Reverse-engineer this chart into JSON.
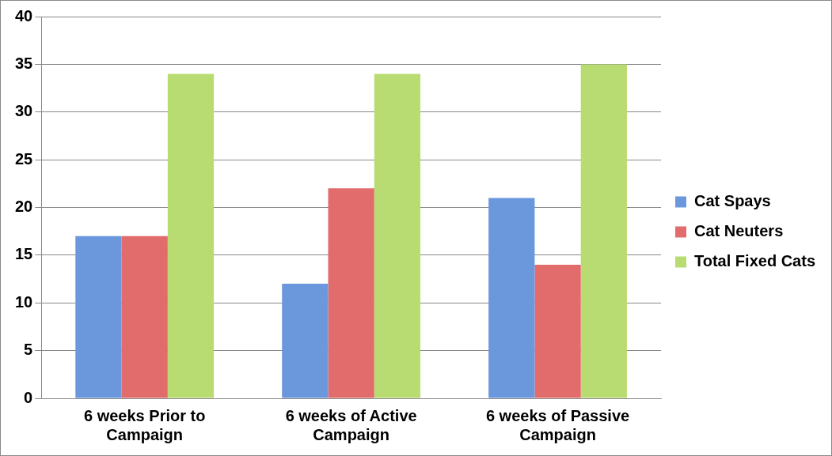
{
  "chart_data": {
    "type": "bar",
    "categories": [
      "6 weeks Prior to Campaign",
      "6 weeks of Active Campaign",
      "6 weeks of Passive Campaign"
    ],
    "series": [
      {
        "name": "Cat Spays",
        "color": "#6b98dc",
        "values": [
          17,
          12,
          21
        ]
      },
      {
        "name": "Cat Neuters",
        "color": "#e26c6c",
        "values": [
          17,
          22,
          14
        ]
      },
      {
        "name": "Total Fixed Cats",
        "color": "#b9dc72",
        "values": [
          34,
          34,
          35
        ]
      }
    ],
    "ylim": [
      0,
      40
    ],
    "yticks": [
      0,
      5,
      10,
      15,
      20,
      25,
      30,
      35,
      40
    ],
    "grid": "y",
    "legend": "right"
  }
}
